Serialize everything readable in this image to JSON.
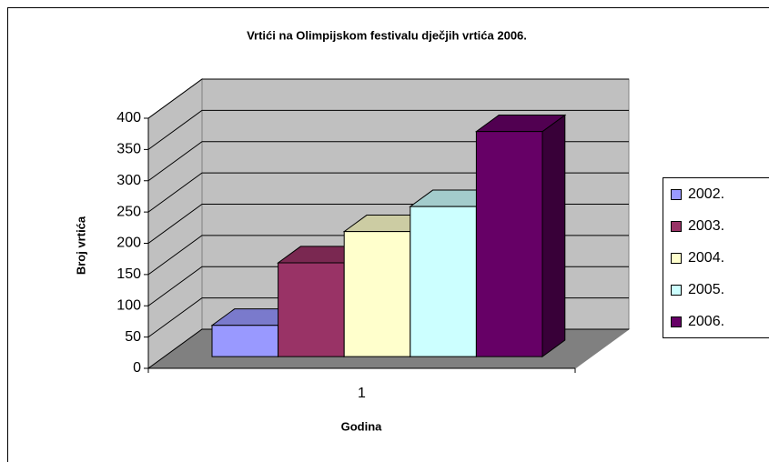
{
  "chart_data": {
    "type": "bar3d",
    "title": "Vrtići na Olimpijskom festivalu dječjih vrtića 2006.",
    "x_label": "Godina",
    "y_label": "Broj vrtića",
    "categories": [
      "1"
    ],
    "series": [
      {
        "name": "2002.",
        "color": "#9999ff",
        "values": [
          50
        ]
      },
      {
        "name": "2003.",
        "color": "#993366",
        "values": [
          150
        ]
      },
      {
        "name": "2004.",
        "color": "#ffffcc",
        "values": [
          200
        ]
      },
      {
        "name": "2005.",
        "color": "#ccffff",
        "values": [
          240
        ]
      },
      {
        "name": "2006.",
        "color": "#660066",
        "values": [
          360
        ]
      }
    ],
    "ylim": [
      0,
      400
    ],
    "yticks": [
      0,
      50,
      100,
      150,
      200,
      250,
      300,
      350,
      400
    ],
    "grid": true,
    "legend": "right"
  }
}
